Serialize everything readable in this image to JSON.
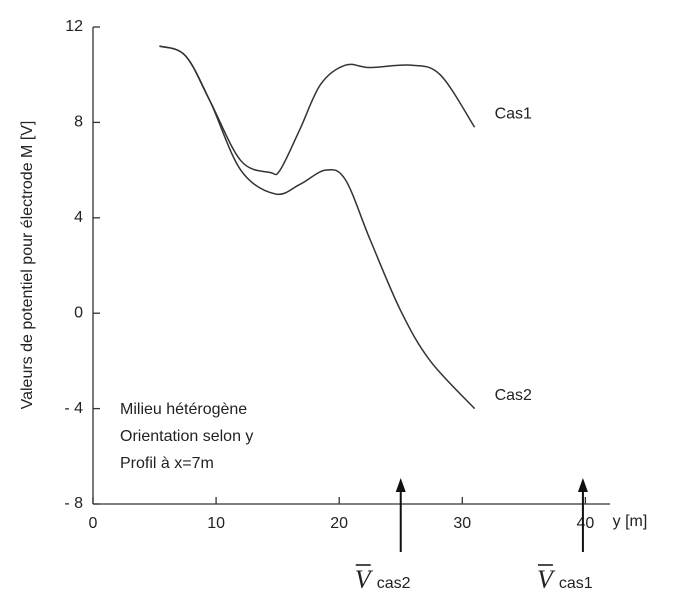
{
  "chart_data": {
    "type": "line",
    "xlabel": "y [m]",
    "ylabel": "Valeurs de potentiel pour électrode M [V]",
    "xlim": [
      0,
      42
    ],
    "ylim": [
      -8,
      12
    ],
    "xticks": [
      0,
      10,
      20,
      30,
      40
    ],
    "yticks": [
      12,
      8,
      4,
      0,
      {
        "value": -4,
        "label": "- 4"
      },
      {
        "value": -8,
        "label": "- 8"
      }
    ],
    "series": [
      {
        "name": "Cas1",
        "color": "#333333",
        "x": [
          5.4,
          7.5,
          9.5,
          12,
          14.4,
          15.2,
          16.8,
          18.5,
          20.5,
          22.5,
          25.8,
          28.2,
          31
        ],
        "values": [
          11.2,
          10.8,
          8.9,
          6.4,
          5.9,
          6.0,
          7.7,
          9.6,
          10.4,
          10.3,
          10.4,
          10.0,
          7.8
        ]
      },
      {
        "name": "Cas2",
        "color": "#333333",
        "x": [
          5.4,
          7.5,
          9.5,
          12,
          14.8,
          16.8,
          18.9,
          20.5,
          22.5,
          25,
          27.4,
          31
        ],
        "values": [
          11.2,
          10.8,
          8.9,
          6.0,
          5.0,
          5.4,
          6.0,
          5.6,
          3.1,
          0.1,
          -2.0,
          -4.0
        ]
      }
    ],
    "annotation_lines": [
      "Milieu  hétérogène",
      "Orientation selon y",
      "Profil à x=7m"
    ],
    "markers": [
      {
        "symbol": "V",
        "subscript": "cas2",
        "x": 25
      },
      {
        "symbol": "V",
        "subscript": "cas1",
        "x": 39.8
      }
    ]
  }
}
